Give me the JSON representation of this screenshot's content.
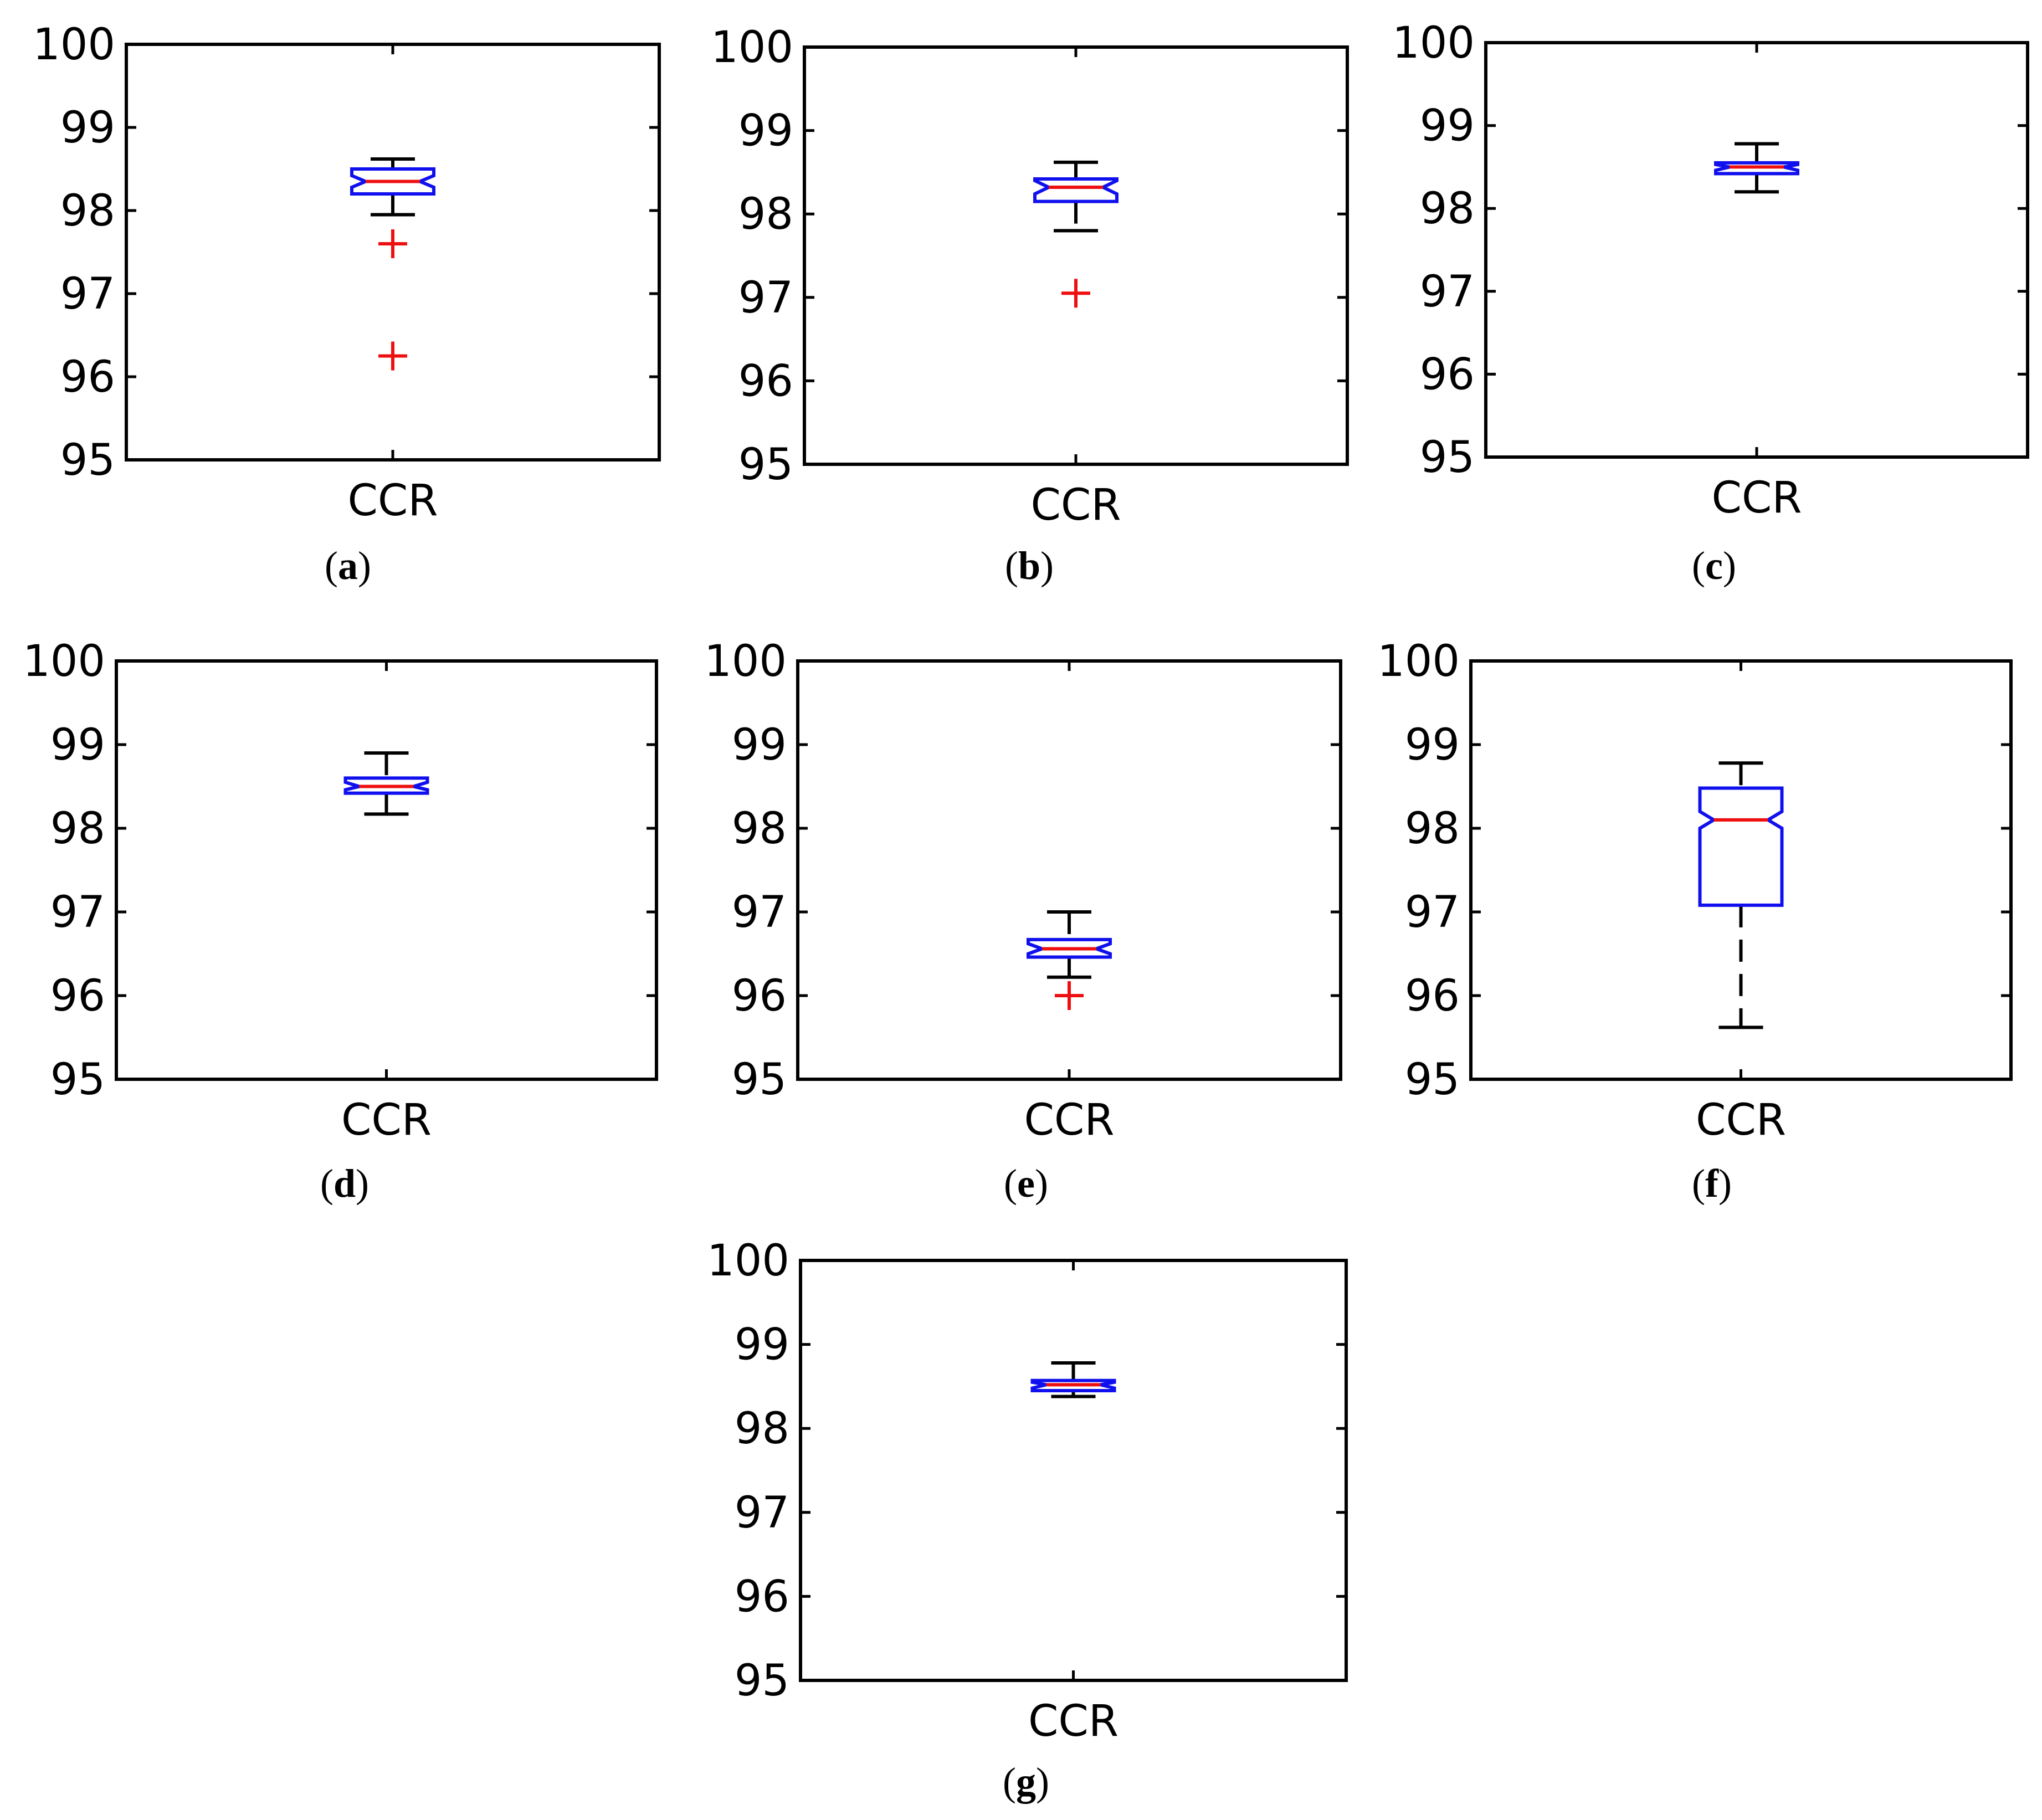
{
  "figure": {
    "panel_labels": [
      "a",
      "b",
      "c",
      "d",
      "e",
      "f",
      "g"
    ]
  },
  "colors": {
    "box": "#1010ee",
    "median": "#ee1010",
    "outlier": "#ee1010",
    "whisker": "#000000"
  },
  "chart_data": [
    {
      "type": "box",
      "panel": "a",
      "categories": [
        "CCR"
      ],
      "ylim": [
        95,
        100
      ],
      "yticks": [
        "95",
        "96",
        "97",
        "98",
        "99",
        "100"
      ],
      "boxes": [
        {
          "whisker_low": 97.95,
          "q1": 98.2,
          "median": 98.35,
          "q3": 98.5,
          "whisker_high": 98.62,
          "notch_low": 98.28,
          "notch_high": 98.42,
          "outliers": [
            97.6,
            96.25
          ]
        }
      ]
    },
    {
      "type": "box",
      "panel": "b",
      "categories": [
        "CCR"
      ],
      "ylim": [
        95,
        100
      ],
      "yticks": [
        "95",
        "96",
        "97",
        "98",
        "99",
        "100"
      ],
      "boxes": [
        {
          "whisker_low": 97.8,
          "q1": 98.15,
          "median": 98.32,
          "q3": 98.42,
          "whisker_high": 98.62,
          "notch_low": 98.24,
          "notch_high": 98.4,
          "outliers": [
            97.05
          ]
        }
      ]
    },
    {
      "type": "box",
      "panel": "c",
      "categories": [
        "CCR"
      ],
      "ylim": [
        95,
        100
      ],
      "yticks": [
        "95",
        "96",
        "97",
        "98",
        "99",
        "100"
      ],
      "boxes": [
        {
          "whisker_low": 98.2,
          "q1": 98.42,
          "median": 98.5,
          "q3": 98.55,
          "whisker_high": 98.78,
          "notch_low": 98.46,
          "notch_high": 98.53,
          "outliers": []
        }
      ]
    },
    {
      "type": "box",
      "panel": "d",
      "categories": [
        "CCR"
      ],
      "ylim": [
        95,
        100
      ],
      "yticks": [
        "95",
        "96",
        "97",
        "98",
        "99",
        "100"
      ],
      "boxes": [
        {
          "whisker_low": 98.17,
          "q1": 98.42,
          "median": 98.5,
          "q3": 98.6,
          "whisker_high": 98.9,
          "notch_low": 98.46,
          "notch_high": 98.55,
          "outliers": []
        }
      ]
    },
    {
      "type": "box",
      "panel": "e",
      "categories": [
        "CCR"
      ],
      "ylim": [
        95,
        100
      ],
      "yticks": [
        "95",
        "96",
        "97",
        "98",
        "99",
        "100"
      ],
      "boxes": [
        {
          "whisker_low": 96.22,
          "q1": 96.46,
          "median": 96.56,
          "q3": 96.67,
          "whisker_high": 97.0,
          "notch_low": 96.5,
          "notch_high": 96.62,
          "outliers": [
            96.0
          ]
        }
      ]
    },
    {
      "type": "box",
      "panel": "f",
      "categories": [
        "CCR"
      ],
      "ylim": [
        95,
        100
      ],
      "yticks": [
        "95",
        "96",
        "97",
        "98",
        "99",
        "100"
      ],
      "boxes": [
        {
          "whisker_low": 95.62,
          "q1": 97.08,
          "median": 98.1,
          "q3": 98.48,
          "whisker_high": 98.78,
          "notch_low": 98.0,
          "notch_high": 98.2,
          "outliers": []
        }
      ]
    },
    {
      "type": "box",
      "panel": "g",
      "categories": [
        "CCR"
      ],
      "ylim": [
        95,
        100
      ],
      "yticks": [
        "95",
        "96",
        "97",
        "98",
        "99",
        "100"
      ],
      "boxes": [
        {
          "whisker_low": 98.38,
          "q1": 98.45,
          "median": 98.52,
          "q3": 98.57,
          "whisker_high": 98.78,
          "notch_low": 98.48,
          "notch_high": 98.55,
          "outliers": []
        }
      ]
    }
  ]
}
